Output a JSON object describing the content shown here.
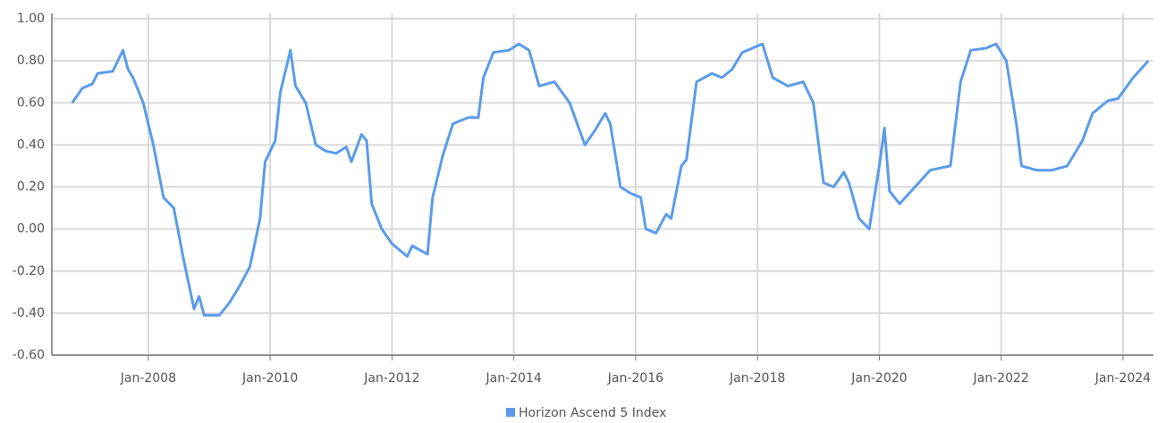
{
  "chart_data": {
    "type": "line",
    "x": [
      "2006-10",
      "2006-12",
      "2007-02",
      "2007-03",
      "2007-06",
      "2007-07",
      "2007-08",
      "2007-09",
      "2007-10",
      "2007-12",
      "2008-02",
      "2008-04",
      "2008-06",
      "2008-08",
      "2008-10",
      "2008-11",
      "2008-12",
      "2009-03",
      "2009-05",
      "2009-07",
      "2009-09",
      "2009-11",
      "2009-12",
      "2010-02",
      "2010-03",
      "2010-05",
      "2010-06",
      "2010-08",
      "2010-10",
      "2010-12",
      "2011-02",
      "2011-04",
      "2011-05",
      "2011-07",
      "2011-08",
      "2011-09",
      "2011-11",
      "2012-01",
      "2012-04",
      "2012-05",
      "2012-08",
      "2012-09",
      "2012-11",
      "2013-01",
      "2013-04",
      "2013-06",
      "2013-07",
      "2013-09",
      "2013-12",
      "2014-02",
      "2014-04",
      "2014-06",
      "2014-09",
      "2014-12",
      "2015-03",
      "2015-05",
      "2015-07",
      "2015-08",
      "2015-10",
      "2015-12",
      "2016-02",
      "2016-03",
      "2016-05",
      "2016-07",
      "2016-08",
      "2016-10",
      "2016-11",
      "2017-01",
      "2017-04",
      "2017-06",
      "2017-08",
      "2017-10",
      "2018-02",
      "2018-04",
      "2018-07",
      "2018-10",
      "2018-12",
      "2019-02",
      "2019-04",
      "2019-06",
      "2019-07",
      "2019-09",
      "2019-11",
      "2020-01",
      "2020-02",
      "2020-03",
      "2020-05",
      "2020-08",
      "2020-11",
      "2021-03",
      "2021-05",
      "2021-07",
      "2021-10",
      "2021-12",
      "2022-02",
      "2022-04",
      "2022-05",
      "2022-08",
      "2022-11",
      "2023-02",
      "2023-05",
      "2023-07",
      "2023-10",
      "2023-12",
      "2024-03",
      "2024-06"
    ],
    "series": [
      {
        "name": "Horizon Ascend 5 Index",
        "color": "#5b9bea",
        "values": [
          0.6,
          0.67,
          0.69,
          0.74,
          0.75,
          0.8,
          0.85,
          0.76,
          0.72,
          0.6,
          0.4,
          0.15,
          0.1,
          -0.15,
          -0.38,
          -0.32,
          -0.41,
          -0.41,
          -0.35,
          -0.27,
          -0.18,
          0.05,
          0.32,
          0.42,
          0.65,
          0.85,
          0.68,
          0.6,
          0.4,
          0.37,
          0.36,
          0.39,
          0.32,
          0.45,
          0.42,
          0.12,
          0.0,
          -0.07,
          -0.13,
          -0.08,
          -0.12,
          0.15,
          0.35,
          0.5,
          0.53,
          0.53,
          0.72,
          0.84,
          0.85,
          0.88,
          0.85,
          0.68,
          0.7,
          0.6,
          0.4,
          0.47,
          0.55,
          0.5,
          0.2,
          0.17,
          0.15,
          0.0,
          -0.02,
          0.07,
          0.05,
          0.3,
          0.33,
          0.7,
          0.74,
          0.72,
          0.76,
          0.84,
          0.88,
          0.72,
          0.68,
          0.7,
          0.6,
          0.22,
          0.2,
          0.27,
          0.22,
          0.05,
          0.0,
          0.3,
          0.48,
          0.18,
          0.12,
          0.2,
          0.28,
          0.3,
          0.7,
          0.85,
          0.86,
          0.88,
          0.8,
          0.5,
          0.3,
          0.28,
          0.28,
          0.3,
          0.42,
          0.55,
          0.61,
          0.62,
          0.72,
          0.8
        ]
      }
    ],
    "xlim": [
      "2006-06",
      "2024-07"
    ],
    "xticks": [
      {
        "value": "2008-01",
        "label": "Jan-2008"
      },
      {
        "value": "2010-01",
        "label": "Jan-2010"
      },
      {
        "value": "2012-01",
        "label": "Jan-2012"
      },
      {
        "value": "2014-01",
        "label": "Jan-2014"
      },
      {
        "value": "2016-01",
        "label": "Jan-2016"
      },
      {
        "value": "2018-01",
        "label": "Jan-2018"
      },
      {
        "value": "2020-01",
        "label": "Jan-2020"
      },
      {
        "value": "2022-01",
        "label": "Jan-2022"
      },
      {
        "value": "2024-01",
        "label": "Jan-2024"
      }
    ],
    "ylim": [
      -0.6,
      1.0
    ],
    "yticks": [
      {
        "value": -0.6,
        "label": "-0.60"
      },
      {
        "value": -0.4,
        "label": "-0.40"
      },
      {
        "value": -0.2,
        "label": "-0.20"
      },
      {
        "value": 0,
        "label": "0.00"
      },
      {
        "value": 0.2,
        "label": "0.20"
      },
      {
        "value": 0.4,
        "label": "0.40"
      },
      {
        "value": 0.6,
        "label": "0.60"
      },
      {
        "value": 0.8,
        "label": "0.80"
      },
      {
        "value": 1.0,
        "label": "1.00"
      }
    ],
    "grid": true,
    "legend": "bottom"
  }
}
